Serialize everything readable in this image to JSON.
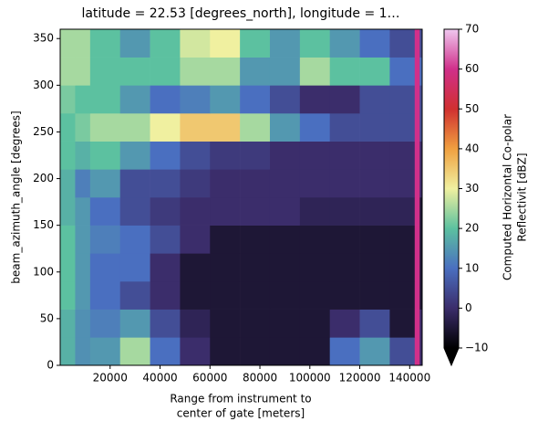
{
  "chart_data": {
    "type": "heatmap",
    "title": "latitude = 22.53 [degrees_north], longitude = 1…",
    "xlabel": [
      "Range from instrument to",
      "center of gate [meters]"
    ],
    "ylabel": "beam_azimuth_angle [degrees]",
    "colorbar_label": [
      "Computed Horizontal Co-polar",
      "Reflectivit [dBZ]"
    ],
    "x_edges": [
      0,
      6000,
      12000,
      24000,
      36000,
      48000,
      60000,
      72000,
      84000,
      96000,
      108000,
      120000,
      132000,
      142000,
      144000,
      145000
    ],
    "y_edges": [
      0,
      30,
      60,
      90,
      120,
      150,
      180,
      210,
      240,
      270,
      300,
      330,
      360
    ],
    "z": [
      [
        18,
        14,
        15,
        25,
        10,
        0,
        -5,
        -5,
        -5,
        -5,
        10,
        15,
        5,
        60,
        0
      ],
      [
        18,
        14,
        12,
        15,
        5,
        -2,
        -5,
        -5,
        -5,
        -5,
        0,
        5,
        -5,
        60,
        0
      ],
      [
        20,
        15,
        10,
        5,
        0,
        -5,
        -5,
        -5,
        -5,
        -5,
        -5,
        -5,
        -5,
        60,
        -5
      ],
      [
        20,
        15,
        10,
        10,
        0,
        -5,
        -5,
        -5,
        -5,
        -5,
        -5,
        -5,
        -5,
        60,
        -5
      ],
      [
        20,
        15,
        12,
        10,
        5,
        0,
        -5,
        -5,
        -5,
        -5,
        -5,
        -5,
        -5,
        60,
        -5
      ],
      [
        18,
        15,
        10,
        5,
        2,
        0,
        0,
        0,
        0,
        -2,
        -2,
        -2,
        -2,
        60,
        -5
      ],
      [
        18,
        12,
        15,
        5,
        5,
        2,
        0,
        0,
        0,
        0,
        0,
        0,
        0,
        60,
        0
      ],
      [
        20,
        18,
        20,
        15,
        10,
        5,
        2,
        2,
        0,
        0,
        0,
        0,
        0,
        60,
        0
      ],
      [
        20,
        22,
        25,
        25,
        30,
        35,
        35,
        25,
        15,
        10,
        5,
        5,
        5,
        60,
        5
      ],
      [
        22,
        20,
        20,
        15,
        10,
        12,
        15,
        10,
        5,
        0,
        0,
        5,
        5,
        60,
        5
      ],
      [
        25,
        25,
        20,
        20,
        20,
        25,
        25,
        15,
        15,
        25,
        20,
        20,
        10,
        60,
        10
      ],
      [
        25,
        25,
        20,
        15,
        20,
        28,
        30,
        20,
        15,
        20,
        15,
        10,
        5,
        60,
        5
      ]
    ],
    "xlim": [
      0,
      145000
    ],
    "xticks": [
      20000,
      40000,
      60000,
      80000,
      100000,
      120000,
      140000
    ],
    "ylim": [
      0,
      360
    ],
    "yticks": [
      0,
      50,
      100,
      150,
      200,
      250,
      300,
      350
    ],
    "clim": [
      -10,
      70
    ],
    "cticks": [
      {
        "value": -10,
        "label": "−10"
      },
      0,
      10,
      20,
      30,
      40,
      50,
      60,
      70
    ],
    "colorscale": [
      {
        "value": -10,
        "color": "#000000"
      },
      {
        "value": 0,
        "color": "#3b2d6b"
      },
      {
        "value": 10,
        "color": "#4a6fc0"
      },
      {
        "value": 20,
        "color": "#5cc1a0"
      },
      {
        "value": 30,
        "color": "#f0f0a0"
      },
      {
        "value": 40,
        "color": "#f0a040"
      },
      {
        "value": 50,
        "color": "#d03030"
      },
      {
        "value": 60,
        "color": "#d0308a"
      },
      {
        "value": 70,
        "color": "#f0c8f0"
      }
    ]
  }
}
